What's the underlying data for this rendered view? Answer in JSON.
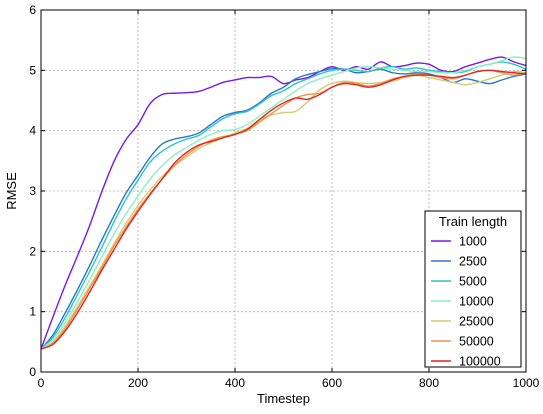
{
  "chart_data": {
    "type": "line",
    "xlabel": "Timestep",
    "ylabel": "RMSE",
    "xlim": [
      0,
      1000
    ],
    "ylim": [
      0,
      6
    ],
    "xticks": [
      0,
      200,
      400,
      600,
      800,
      1000
    ],
    "yticks": [
      0,
      1,
      2,
      3,
      4,
      5,
      6
    ],
    "grid": true,
    "legend": {
      "title": "Train length",
      "position": "bottom-right"
    },
    "x": [
      0,
      25,
      50,
      75,
      100,
      125,
      150,
      175,
      200,
      225,
      250,
      275,
      300,
      325,
      350,
      375,
      400,
      425,
      450,
      475,
      500,
      525,
      550,
      575,
      600,
      625,
      650,
      675,
      700,
      725,
      750,
      775,
      800,
      825,
      850,
      875,
      900,
      925,
      950,
      975,
      1000
    ],
    "series": [
      {
        "name": "1000",
        "color": "#7b16e6",
        "values": [
          0.38,
          0.92,
          1.44,
          1.92,
          2.42,
          2.98,
          3.48,
          3.85,
          4.1,
          4.45,
          4.6,
          4.62,
          4.63,
          4.65,
          4.72,
          4.8,
          4.84,
          4.88,
          4.88,
          4.9,
          4.78,
          4.84,
          4.88,
          4.98,
          5.06,
          5.0,
          5.06,
          5.02,
          5.14,
          5.06,
          5.08,
          5.12,
          5.1,
          5.0,
          4.98,
          5.06,
          5.12,
          5.18,
          5.22,
          5.14,
          5.08
        ]
      },
      {
        "name": "2500",
        "color": "#2878c8",
        "values": [
          0.38,
          0.62,
          0.98,
          1.36,
          1.76,
          2.18,
          2.58,
          2.96,
          3.26,
          3.56,
          3.78,
          3.86,
          3.9,
          3.96,
          4.1,
          4.24,
          4.3,
          4.34,
          4.46,
          4.62,
          4.72,
          4.86,
          4.93,
          4.98,
          5.03,
          5.02,
          4.96,
          4.98,
          5.02,
          4.96,
          4.94,
          4.96,
          4.94,
          4.88,
          4.8,
          4.86,
          4.82,
          4.78,
          4.84,
          4.9,
          4.94
        ]
      },
      {
        "name": "5000",
        "color": "#2cc4cc",
        "values": [
          0.38,
          0.58,
          0.9,
          1.28,
          1.66,
          2.06,
          2.48,
          2.86,
          3.18,
          3.48,
          3.66,
          3.78,
          3.86,
          3.92,
          4.06,
          4.2,
          4.28,
          4.32,
          4.44,
          4.58,
          4.66,
          4.78,
          4.86,
          4.94,
          5.0,
          5.02,
          5.0,
          4.98,
          5.04,
          5.06,
          5.02,
          5.04,
          5.0,
          4.98,
          4.96,
          4.98,
          5.06,
          5.1,
          5.14,
          5.1,
          5.02
        ]
      },
      {
        "name": "10000",
        "color": "#8cf0c2",
        "values": [
          0.38,
          0.54,
          0.82,
          1.16,
          1.52,
          1.9,
          2.28,
          2.62,
          2.92,
          3.2,
          3.42,
          3.6,
          3.72,
          3.84,
          3.94,
          4.0,
          4.02,
          4.1,
          4.24,
          4.38,
          4.52,
          4.66,
          4.78,
          4.86,
          4.92,
          4.98,
          5.04,
          5.06,
          5.04,
          5.02,
          5.0,
          4.98,
          4.98,
          4.96,
          4.96,
          5.0,
          5.06,
          5.1,
          5.16,
          5.22,
          5.2
        ]
      },
      {
        "name": "25000",
        "color": "#d2cc70",
        "values": [
          0.38,
          0.5,
          0.76,
          1.08,
          1.42,
          1.76,
          2.12,
          2.46,
          2.76,
          3.02,
          3.24,
          3.42,
          3.56,
          3.7,
          3.8,
          3.88,
          3.96,
          4.04,
          4.18,
          4.26,
          4.3,
          4.32,
          4.48,
          4.68,
          4.78,
          4.82,
          4.8,
          4.78,
          4.8,
          4.82,
          4.88,
          4.92,
          4.88,
          4.84,
          4.8,
          4.76,
          4.8,
          4.86,
          4.92,
          4.98,
          4.96
        ]
      },
      {
        "name": "50000",
        "color": "#f49050",
        "values": [
          0.38,
          0.48,
          0.72,
          1.04,
          1.38,
          1.72,
          2.08,
          2.4,
          2.7,
          2.96,
          3.2,
          3.42,
          3.6,
          3.74,
          3.84,
          3.9,
          3.94,
          4.0,
          4.14,
          4.28,
          4.42,
          4.54,
          4.6,
          4.62,
          4.72,
          4.8,
          4.78,
          4.74,
          4.78,
          4.86,
          4.9,
          4.94,
          4.92,
          4.88,
          4.86,
          4.92,
          4.98,
          5.0,
          4.96,
          4.92,
          4.96
        ]
      },
      {
        "name": "100000",
        "color": "#e0281e",
        "values": [
          0.38,
          0.46,
          0.68,
          0.98,
          1.32,
          1.68,
          2.02,
          2.36,
          2.66,
          2.94,
          3.2,
          3.46,
          3.64,
          3.76,
          3.82,
          3.88,
          3.94,
          4.02,
          4.18,
          4.34,
          4.46,
          4.54,
          4.52,
          4.6,
          4.72,
          4.78,
          4.76,
          4.72,
          4.76,
          4.84,
          4.9,
          4.92,
          4.92,
          4.9,
          4.88,
          4.92,
          4.98,
          5.0,
          4.98,
          4.96,
          4.94
        ]
      }
    ]
  }
}
